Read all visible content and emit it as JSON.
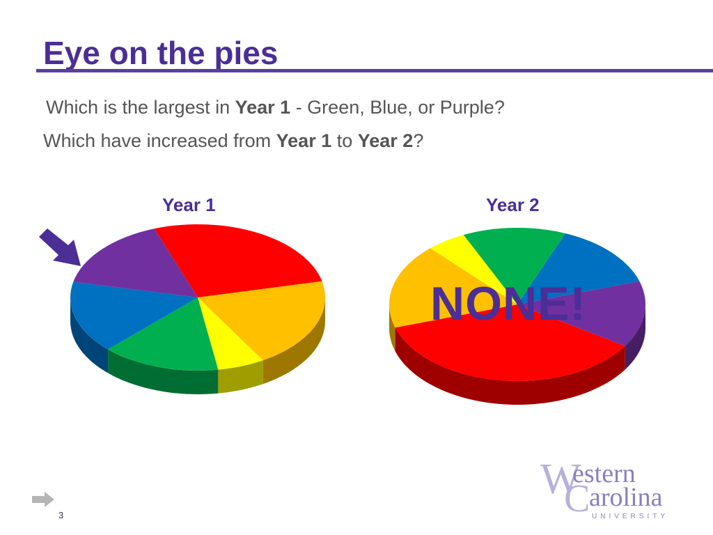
{
  "slide": {
    "title": "Eye on the pies",
    "q1": {
      "pre": "Which is the largest in ",
      "bold": "Year 1",
      "post": " - Green, Blue, or Purple?"
    },
    "q2": {
      "pre": "Which have increased from ",
      "bold1": "Year 1",
      "mid": " to ",
      "bold2": "Year 2",
      "post": "?"
    },
    "none_label": "NONE!",
    "page_number": "3",
    "logo": {
      "line1": "Western",
      "line2": "Carolina",
      "line3": "UNIVERSITY"
    },
    "colors": {
      "accent": "#4b2e96",
      "rule": "#5b3fa0"
    }
  },
  "chart_data": [
    {
      "type": "pie",
      "title": "Year 1",
      "slices": [
        {
          "color": "#ff0000",
          "value": 27
        },
        {
          "color": "#ffc000",
          "value": 20
        },
        {
          "color": "#ffff00",
          "value": 6
        },
        {
          "color": "#00b050",
          "value": 15
        },
        {
          "color": "#0070c0",
          "value": 16
        },
        {
          "color": "#7030a0",
          "value": 16
        }
      ]
    },
    {
      "type": "pie",
      "title": "Year 2",
      "slices": [
        {
          "color": "#0070c0",
          "value": 14
        },
        {
          "color": "#7030a0",
          "value": 14
        },
        {
          "color": "#ff0000",
          "value": 36
        },
        {
          "color": "#ffc000",
          "value": 18
        },
        {
          "color": "#ffff00",
          "value": 5
        },
        {
          "color": "#00b050",
          "value": 13
        }
      ]
    }
  ]
}
